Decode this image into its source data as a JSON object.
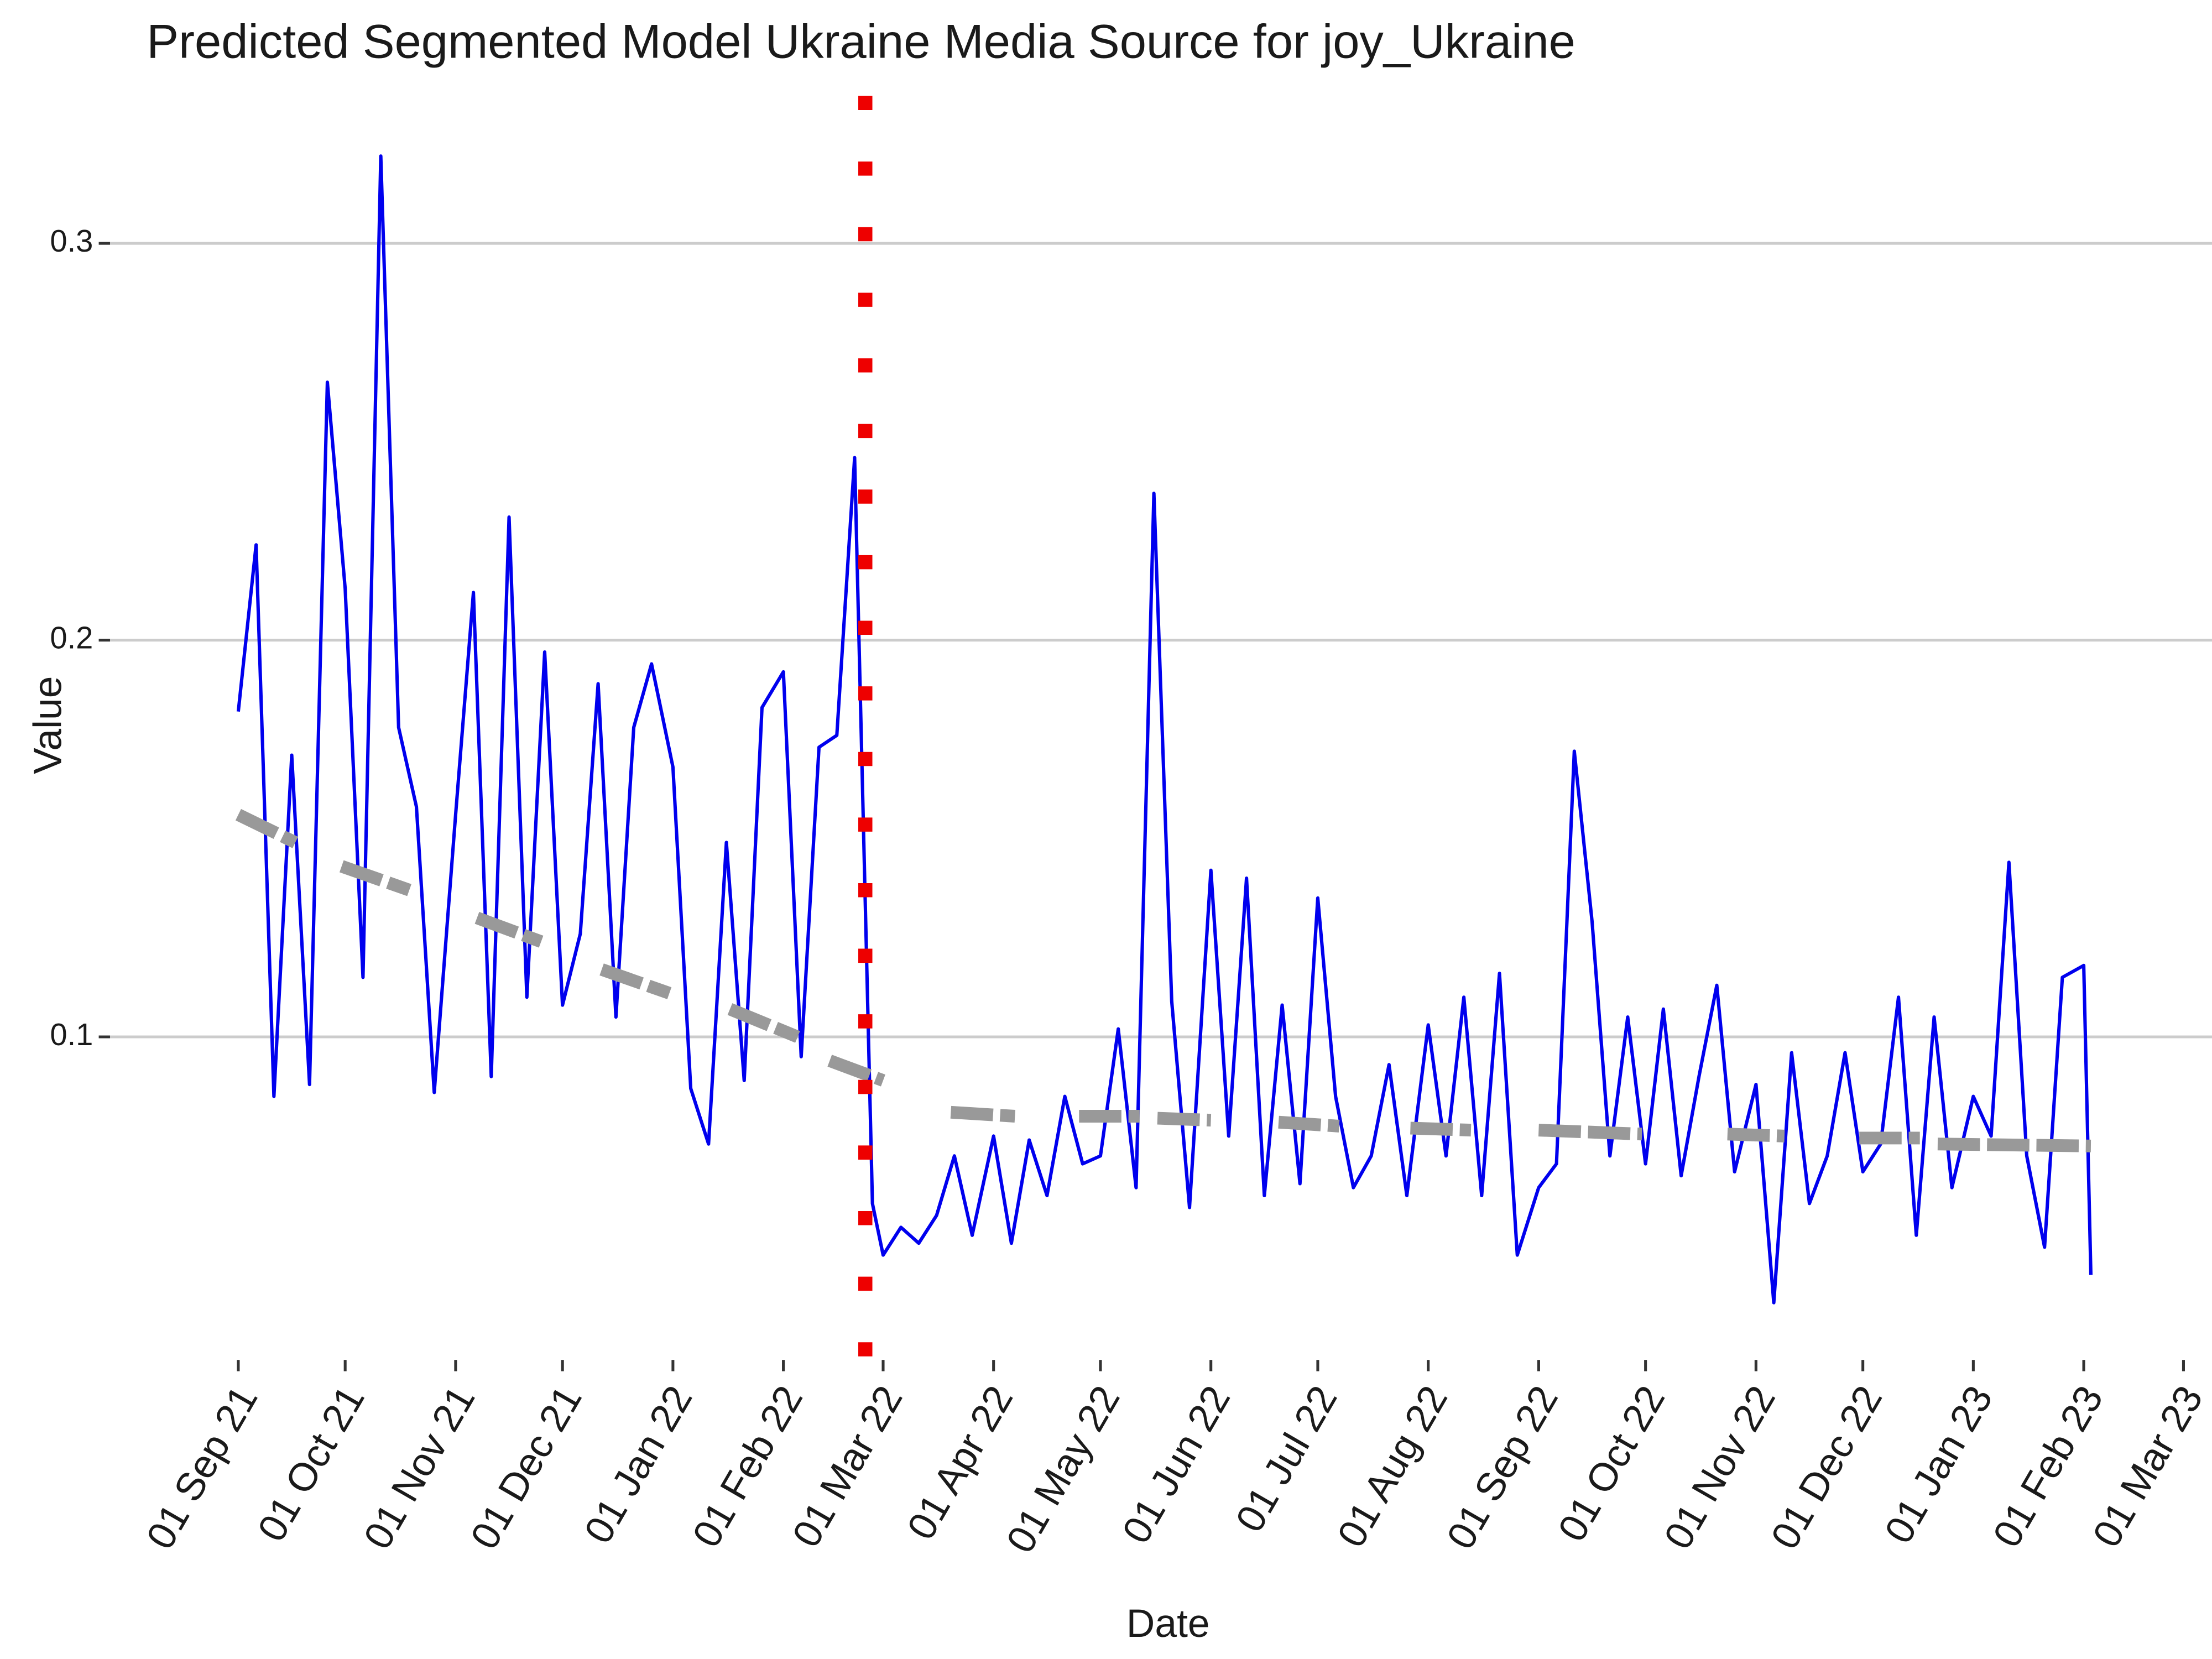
{
  "chart_data": {
    "type": "line",
    "title": "Predicted Segmented Model Ukraine Media Source for joy_Ukraine",
    "x_label": "Date",
    "y_label": "Value",
    "x": [
      "2021-09-01",
      "2021-09-06",
      "2021-09-11",
      "2021-09-16",
      "2021-09-21",
      "2021-09-26",
      "2021-10-01",
      "2021-10-06",
      "2021-10-11",
      "2021-10-16",
      "2021-10-21",
      "2021-10-26",
      "2021-11-01",
      "2021-11-06",
      "2021-11-11",
      "2021-11-16",
      "2021-11-21",
      "2021-11-26",
      "2021-12-01",
      "2021-12-06",
      "2021-12-11",
      "2021-12-16",
      "2021-12-21",
      "2021-12-26",
      "2022-01-01",
      "2022-01-06",
      "2022-01-11",
      "2022-01-16",
      "2022-01-21",
      "2022-01-26",
      "2022-02-01",
      "2022-02-06",
      "2022-02-11",
      "2022-02-16",
      "2022-02-21",
      "2022-02-26",
      "2022-03-01",
      "2022-03-06",
      "2022-03-11",
      "2022-03-16",
      "2022-03-21",
      "2022-03-26",
      "2022-04-01",
      "2022-04-06",
      "2022-04-11",
      "2022-04-16",
      "2022-04-21",
      "2022-04-26",
      "2022-05-01",
      "2022-05-06",
      "2022-05-11",
      "2022-05-16",
      "2022-05-21",
      "2022-05-26",
      "2022-06-01",
      "2022-06-06",
      "2022-06-11",
      "2022-06-16",
      "2022-06-21",
      "2022-06-26",
      "2022-07-01",
      "2022-07-06",
      "2022-07-11",
      "2022-07-16",
      "2022-07-21",
      "2022-07-26",
      "2022-08-01",
      "2022-08-06",
      "2022-08-11",
      "2022-08-16",
      "2022-08-21",
      "2022-08-26",
      "2022-09-01",
      "2022-09-06",
      "2022-09-11",
      "2022-09-16",
      "2022-09-21",
      "2022-09-26",
      "2022-10-01",
      "2022-10-06",
      "2022-10-11",
      "2022-10-16",
      "2022-10-21",
      "2022-10-26",
      "2022-11-01",
      "2022-11-06",
      "2022-11-11",
      "2022-11-16",
      "2022-11-21",
      "2022-11-26",
      "2022-12-01",
      "2022-12-06",
      "2022-12-11",
      "2022-12-16",
      "2022-12-21",
      "2022-12-26",
      "2023-01-01",
      "2023-01-06",
      "2023-01-11",
      "2023-01-16",
      "2023-01-21",
      "2023-01-26",
      "2023-02-01",
      "2023-02-03"
    ],
    "series": [
      {
        "color": "#0000ee",
        "values": [
          0.182,
          0.224,
          0.085,
          0.171,
          0.088,
          0.265,
          0.213,
          0.115,
          0.322,
          0.178,
          0.158,
          0.086,
          0.156,
          0.212,
          0.09,
          0.231,
          0.11,
          0.197,
          0.108,
          0.126,
          0.189,
          0.105,
          0.178,
          0.194,
          0.168,
          0.087,
          0.073,
          0.149,
          0.089,
          0.183,
          0.192,
          0.095,
          0.173,
          0.176,
          0.246,
          0.058,
          0.045,
          0.052,
          0.048,
          0.055,
          0.07,
          0.05,
          0.075,
          0.048,
          0.074,
          0.06,
          0.085,
          0.068,
          0.07,
          0.102,
          0.062,
          0.237,
          0.109,
          0.057,
          0.142,
          0.075,
          0.14,
          0.06,
          0.108,
          0.063,
          0.135,
          0.085,
          0.062,
          0.07,
          0.093,
          0.06,
          0.103,
          0.07,
          0.11,
          0.06,
          0.116,
          0.045,
          0.062,
          0.068,
          0.172,
          0.129,
          0.07,
          0.105,
          0.068,
          0.107,
          0.065,
          0.09,
          0.113,
          0.066,
          0.088,
          0.033,
          0.096,
          0.058,
          0.07,
          0.096,
          0.066,
          0.073,
          0.11,
          0.05,
          0.105,
          0.062,
          0.085,
          0.075,
          0.144,
          0.07,
          0.047,
          0.115,
          0.118,
          0.04
        ]
      }
    ],
    "segment_color": "#999999",
    "segments": [
      {
        "x": [
          "2021-09-01",
          "2021-09-17"
        ],
        "values": [
          0.156,
          0.149
        ]
      },
      {
        "x": [
          "2021-09-30",
          "2021-10-19"
        ],
        "values": [
          0.143,
          0.137
        ]
      },
      {
        "x": [
          "2021-11-07",
          "2021-11-25"
        ],
        "values": [
          0.13,
          0.124
        ]
      },
      {
        "x": [
          "2021-12-12",
          "2021-12-31"
        ],
        "values": [
          0.117,
          0.111
        ]
      },
      {
        "x": [
          "2022-01-17",
          "2022-02-05"
        ],
        "values": [
          0.107,
          0.1
        ]
      },
      {
        "x": [
          "2022-02-14",
          "2022-03-01"
        ],
        "values": [
          0.094,
          0.089
        ]
      },
      {
        "x": [
          "2022-03-20",
          "2022-04-07"
        ],
        "values": [
          0.081,
          0.08
        ]
      },
      {
        "x": [
          "2022-04-25",
          "2022-05-12"
        ],
        "values": [
          0.08,
          0.08
        ]
      },
      {
        "x": [
          "2022-05-17",
          "2022-06-01"
        ],
        "values": [
          0.0795,
          0.079
        ]
      },
      {
        "x": [
          "2022-06-20",
          "2022-07-07"
        ],
        "values": [
          0.0785,
          0.0775
        ]
      },
      {
        "x": [
          "2022-07-27",
          "2022-08-13"
        ],
        "values": [
          0.077,
          0.0765
        ]
      },
      {
        "x": [
          "2022-09-01",
          "2022-09-30"
        ],
        "values": [
          0.0765,
          0.0755
        ]
      },
      {
        "x": [
          "2022-10-24",
          "2022-11-09"
        ],
        "values": [
          0.0755,
          0.075
        ]
      },
      {
        "x": [
          "2022-11-30",
          "2022-12-17"
        ],
        "values": [
          0.0745,
          0.0745
        ]
      },
      {
        "x": [
          "2022-12-22",
          "2023-02-03"
        ],
        "values": [
          0.073,
          0.0725
        ]
      }
    ],
    "vline": {
      "x": "2022-02-24",
      "color": "#ee0000"
    },
    "xlim": [
      "2021-07-27",
      "2023-03-09"
    ],
    "ylim": [
      0.02,
      0.34
    ],
    "yticks": [
      0.1,
      0.2,
      0.3
    ],
    "xticks": [
      {
        "value": "2021-09-01",
        "label": "01 Sep 21"
      },
      {
        "value": "2021-10-01",
        "label": "01 Oct 21"
      },
      {
        "value": "2021-11-01",
        "label": "01 Nov 21"
      },
      {
        "value": "2021-12-01",
        "label": "01 Dec 21"
      },
      {
        "value": "2022-01-01",
        "label": "01 Jan 22"
      },
      {
        "value": "2022-02-01",
        "label": "01 Feb 22"
      },
      {
        "value": "2022-03-01",
        "label": "01 Mar 22"
      },
      {
        "value": "2022-04-01",
        "label": "01 Apr 22"
      },
      {
        "value": "2022-05-01",
        "label": "01 May 22"
      },
      {
        "value": "2022-06-01",
        "label": "01 Jun 22"
      },
      {
        "value": "2022-07-01",
        "label": "01 Jul 22"
      },
      {
        "value": "2022-08-01",
        "label": "01 Aug 22"
      },
      {
        "value": "2022-09-01",
        "label": "01 Sep 22"
      },
      {
        "value": "2022-10-01",
        "label": "01 Oct 22"
      },
      {
        "value": "2022-11-01",
        "label": "01 Nov 22"
      },
      {
        "value": "2022-12-01",
        "label": "01 Dec 22"
      },
      {
        "value": "2023-01-01",
        "label": "01 Jan 23"
      },
      {
        "value": "2023-02-01",
        "label": "01 Feb 23"
      },
      {
        "value": "2023-03-01",
        "label": "01 Mar 23"
      }
    ],
    "grid": true
  }
}
